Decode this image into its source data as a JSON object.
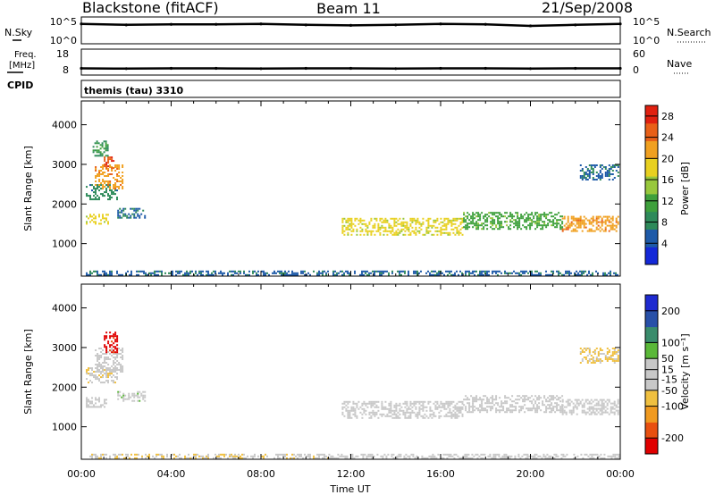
{
  "header": {
    "station": "Blackstone (fitACF)",
    "beam": "Beam 11",
    "date": "21/Sep/2008"
  },
  "labels": {
    "nsky": "N.Sky",
    "nsearch": "N.Search",
    "freq_line1": "Freq.",
    "freq_line2": "[MHz]",
    "nave": "Nave",
    "cpid": "CPID",
    "cpid_value": "themis (tau) 3310"
  },
  "colors": {
    "power_scale": [
      "#1428d8",
      "#1e5aa8",
      "#2e8a5a",
      "#3ea03c",
      "#98c83c",
      "#e8d020",
      "#f0a020",
      "#e86018",
      "#e02010"
    ],
    "velocity_scale": [
      "#e00000",
      "#e85010",
      "#f09a20",
      "#f0c040",
      "#c8c8c8",
      "#c8c8c8",
      "#5ab838",
      "#3a8c6c",
      "#2850a8",
      "#1e2ad0"
    ]
  },
  "chart_data": [
    {
      "type": "line",
      "name_panel": "noise",
      "x": [
        "00:00",
        "02:00",
        "04:00",
        "06:00",
        "08:00",
        "10:00",
        "12:00",
        "14:00",
        "16:00",
        "18:00",
        "20:00",
        "22:00",
        "24:00"
      ],
      "series": [
        {
          "values": [
            3.8,
            3.6,
            3.7,
            3.7,
            3.8,
            3.6,
            3.5,
            3.6,
            3.8,
            3.7,
            3.4,
            3.6,
            3.8
          ]
        }
      ],
      "left_ticks": [
        "10^5",
        "10^0"
      ],
      "right_ticks": [
        "10^5",
        "10^0"
      ],
      "ylim": [
        0,
        5
      ]
    },
    {
      "type": "line",
      "name_panel": "frequency",
      "x": [
        "00:00",
        "02:00",
        "04:00",
        "06:00",
        "08:00",
        "10:00",
        "12:00",
        "14:00",
        "16:00",
        "18:00",
        "20:00",
        "22:00",
        "24:00"
      ],
      "series": [
        {
          "values": [
            10.4,
            10.3,
            10.4,
            10.4,
            10.3,
            10.4,
            10.4,
            10.3,
            10.4,
            10.4,
            10.3,
            10.4,
            10.4
          ]
        }
      ],
      "left_ticks": [
        "18",
        "8"
      ],
      "right_ticks": [
        "60",
        "0"
      ],
      "ylim": [
        8,
        18
      ]
    },
    {
      "type": "heatmap",
      "name_panel": "power",
      "x_ticks": [
        "00:00",
        "04:00",
        "08:00",
        "12:00",
        "16:00",
        "20:00",
        "00:00"
      ],
      "xlim_hours": [
        0,
        24
      ],
      "ylabel": "Slant Range [km]",
      "y_ticks": [
        "4000",
        "3000",
        "2000",
        "1000"
      ],
      "ylim": [
        180,
        4600
      ],
      "colorbar": {
        "label": "Power [dB]",
        "ticks": [
          "28",
          "24",
          "20",
          "16",
          "12",
          "8",
          "4"
        ],
        "range": [
          0,
          30
        ]
      },
      "regions": [
        {
          "t": [
            0.2,
            1.2
          ],
          "r": [
            1500,
            1750
          ],
          "value": 18
        },
        {
          "t": [
            0.2,
            1.6
          ],
          "r": [
            2100,
            2500
          ],
          "value": 8
        },
        {
          "t": [
            0.6,
            1.8
          ],
          "r": [
            2400,
            3000
          ],
          "value": 22
        },
        {
          "t": [
            1.0,
            1.4
          ],
          "r": [
            2900,
            3200
          ],
          "value": 26
        },
        {
          "t": [
            0.5,
            1.2
          ],
          "r": [
            3200,
            3600
          ],
          "value": 10
        },
        {
          "t": [
            1.6,
            2.8
          ],
          "r": [
            1650,
            1900
          ],
          "value": 6
        },
        {
          "t": [
            11.6,
            17.0
          ],
          "r": [
            1200,
            1650
          ],
          "value": 18
        },
        {
          "t": [
            17.0,
            21.4
          ],
          "r": [
            1350,
            1800
          ],
          "value": 12
        },
        {
          "t": [
            21.4,
            23.9
          ],
          "r": [
            1300,
            1700
          ],
          "value": 22
        },
        {
          "t": [
            22.2,
            23.9
          ],
          "r": [
            2600,
            3000
          ],
          "value": 6
        },
        {
          "t": [
            0.2,
            23.9
          ],
          "r": [
            200,
            320
          ],
          "value": 6
        }
      ]
    },
    {
      "type": "heatmap",
      "name_panel": "velocity",
      "x_ticks": [
        "00:00",
        "04:00",
        "08:00",
        "12:00",
        "16:00",
        "20:00",
        "00:00"
      ],
      "xlim_hours": [
        0,
        24
      ],
      "xlabel": "Time UT",
      "ylabel": "Slant Range [km]",
      "y_ticks": [
        "4000",
        "3000",
        "2000",
        "1000"
      ],
      "ylim": [
        180,
        4600
      ],
      "colorbar": {
        "label": "Velocity [m s⁻¹]",
        "ticks": [
          "200",
          "100",
          "50",
          "15",
          "-15",
          "-50",
          "-100",
          "-200"
        ],
        "range": [
          -250,
          250
        ]
      },
      "regions": [
        {
          "t": [
            0.2,
            1.2
          ],
          "r": [
            1500,
            1750
          ],
          "value": 0
        },
        {
          "t": [
            0.2,
            1.6
          ],
          "r": [
            2100,
            2500
          ],
          "value": -40
        },
        {
          "t": [
            0.6,
            1.8
          ],
          "r": [
            2400,
            3000
          ],
          "value": 0
        },
        {
          "t": [
            1.0,
            1.6
          ],
          "r": [
            2900,
            3400
          ],
          "value": -220
        },
        {
          "t": [
            1.6,
            2.8
          ],
          "r": [
            1650,
            1900
          ],
          "value": 30
        },
        {
          "t": [
            11.6,
            17.0
          ],
          "r": [
            1200,
            1650
          ],
          "value": 0
        },
        {
          "t": [
            17.0,
            21.4
          ],
          "r": [
            1350,
            1800
          ],
          "value": 0
        },
        {
          "t": [
            21.4,
            23.9
          ],
          "r": [
            1300,
            1700
          ],
          "value": 0
        },
        {
          "t": [
            22.2,
            23.9
          ],
          "r": [
            2600,
            3000
          ],
          "value": -60
        },
        {
          "t": [
            0.2,
            11.0
          ],
          "r": [
            200,
            320
          ],
          "value": -40
        },
        {
          "t": [
            11.0,
            23.9
          ],
          "r": [
            200,
            320
          ],
          "value": 20
        }
      ]
    }
  ]
}
